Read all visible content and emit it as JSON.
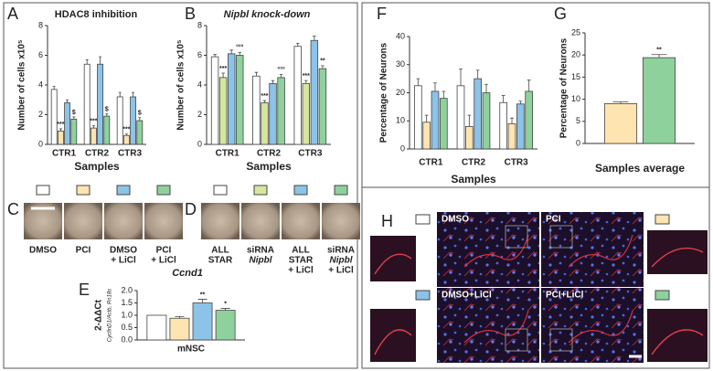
{
  "chart_data": [
    {
      "type": "bar",
      "panel": "A",
      "title": "HDAC8 inhibition",
      "ylabel": "Number of cells x10⁵",
      "xlabel": "Samples",
      "categories": [
        "CTR1",
        "CTR2",
        "CTR3"
      ],
      "ylim": [
        0,
        8
      ],
      "yticks": [
        0,
        2,
        4,
        6,
        8
      ],
      "series": [
        {
          "color": "#ffffff",
          "values": [
            3.7,
            5.4,
            3.2
          ],
          "errors": [
            0.2,
            0.3,
            0.3
          ]
        },
        {
          "color": "#fde4b0",
          "values": [
            0.9,
            1.1,
            0.6
          ],
          "errors": [
            0.15,
            0.15,
            0.1
          ],
          "labels": [
            "***",
            "***",
            "***"
          ]
        },
        {
          "color": "#8cc3e8",
          "values": [
            2.8,
            5.4,
            3.2
          ],
          "errors": [
            0.2,
            0.5,
            0.3
          ]
        },
        {
          "color": "#8fd19c",
          "values": [
            1.7,
            1.9,
            1.6
          ],
          "errors": [
            0.15,
            0.15,
            0.2
          ],
          "labels": [
            "$",
            "$",
            "$"
          ]
        }
      ]
    },
    {
      "type": "bar",
      "panel": "B",
      "title": "Nipbl knock-down",
      "ylabel": "Number of cells x10⁵",
      "xlabel": "Samples",
      "categories": [
        "CTR1",
        "CTR2",
        "CTR3"
      ],
      "ylim": [
        0,
        8
      ],
      "yticks": [
        0,
        2,
        4,
        6,
        8
      ],
      "series": [
        {
          "color": "#ffffff",
          "values": [
            5.9,
            4.6,
            6.6
          ],
          "errors": [
            0.15,
            0.25,
            0.2
          ]
        },
        {
          "color": "#d5e79d",
          "values": [
            4.5,
            2.8,
            4.1
          ],
          "errors": [
            0.3,
            0.15,
            0.2
          ],
          "labels": [
            "***",
            "***",
            "***"
          ]
        },
        {
          "color": "#8cc3e8",
          "values": [
            6.1,
            4.1,
            7.0
          ],
          "errors": [
            0.25,
            0.2,
            0.3
          ]
        },
        {
          "color": "#8fd19c",
          "values": [
            6.0,
            4.5,
            5.1
          ],
          "errors": [
            0.2,
            0.2,
            0.2
          ],
          "labels": [
            "°°°",
            "°°°",
            "**"
          ]
        }
      ]
    },
    {
      "type": "bar",
      "panel": "E",
      "title": "Ccnd1",
      "ylabel": "2-ΔΔCt",
      "ylabel_note": "CyclinD1/Actb, Rn18s",
      "categories": [
        "mNSC"
      ],
      "ylim": [
        0,
        2
      ],
      "yticks": [
        {
          "value": 0,
          "label": "0.0"
        },
        {
          "value": 0.5,
          "label": "0.5"
        },
        {
          "value": 1,
          "label": "1.0"
        },
        {
          "value": 1.5,
          "label": "1.5"
        },
        {
          "value": 2,
          "label": "2.0"
        }
      ],
      "series": [
        {
          "color": "#ffffff",
          "values": [
            1.0
          ]
        },
        {
          "color": "#fde4b0",
          "values": [
            0.88
          ],
          "errors": [
            0.07
          ]
        },
        {
          "color": "#8cc3e8",
          "values": [
            1.5
          ],
          "errors": [
            0.15
          ],
          "labels": [
            "**"
          ]
        },
        {
          "color": "#8fd19c",
          "values": [
            1.2
          ],
          "errors": [
            0.08
          ],
          "labels": [
            "*"
          ]
        }
      ]
    },
    {
      "type": "bar",
      "panel": "F",
      "ylabel": "Percentage of Neurons",
      "xlabel": "Samples",
      "categories": [
        "CTR1",
        "CTR2",
        "CTR3"
      ],
      "ylim": [
        0,
        40
      ],
      "yticks": [
        0,
        10,
        20,
        30,
        40
      ],
      "series": [
        {
          "color": "#ffffff",
          "values": [
            22.5,
            22.5,
            16.5
          ],
          "errors": [
            2.5,
            6,
            2.5
          ]
        },
        {
          "color": "#fde4b0",
          "values": [
            9.5,
            8,
            9
          ],
          "errors": [
            2.5,
            4,
            2
          ]
        },
        {
          "color": "#8cc3e8",
          "values": [
            20.5,
            25,
            16
          ],
          "errors": [
            3,
            3,
            1
          ]
        },
        {
          "color": "#8fd19c",
          "values": [
            18,
            20,
            20.5
          ],
          "errors": [
            2.5,
            3,
            4
          ]
        }
      ]
    },
    {
      "type": "bar",
      "panel": "G",
      "ylabel": "Percentage of Neurons",
      "xlabel": "Samples average",
      "categories": [
        null
      ],
      "ylim": [
        0,
        25
      ],
      "yticks": [
        0,
        5,
        10,
        15,
        20,
        25
      ],
      "series": [
        {
          "color": "#fde4b0",
          "values": [
            9
          ],
          "errors": [
            0.4
          ]
        },
        {
          "color": "#8fd19c",
          "values": [
            19.4
          ],
          "errors": [
            0.7
          ],
          "labels": [
            "**"
          ]
        }
      ]
    }
  ],
  "image_panels": [
    {
      "panel": "C",
      "labels": [
        [
          "DMSO"
        ],
        [
          "PCI"
        ],
        [
          "DMSO",
          "+ LiCl"
        ],
        [
          "PCI",
          "+ LiCl"
        ]
      ]
    },
    {
      "panel": "D",
      "labels": [
        [
          "ALL",
          "STAR"
        ],
        [
          "siRNA",
          "Nipbl"
        ],
        [
          "ALL",
          "STAR",
          "+ LiCl"
        ],
        [
          "siRNA",
          "Nipbl",
          "+ LiCl"
        ]
      ]
    },
    {
      "panel": "H",
      "labels": [
        "DMSO",
        "PCI",
        "DMSO+LiCl",
        "PCI+LiCl"
      ]
    }
  ]
}
